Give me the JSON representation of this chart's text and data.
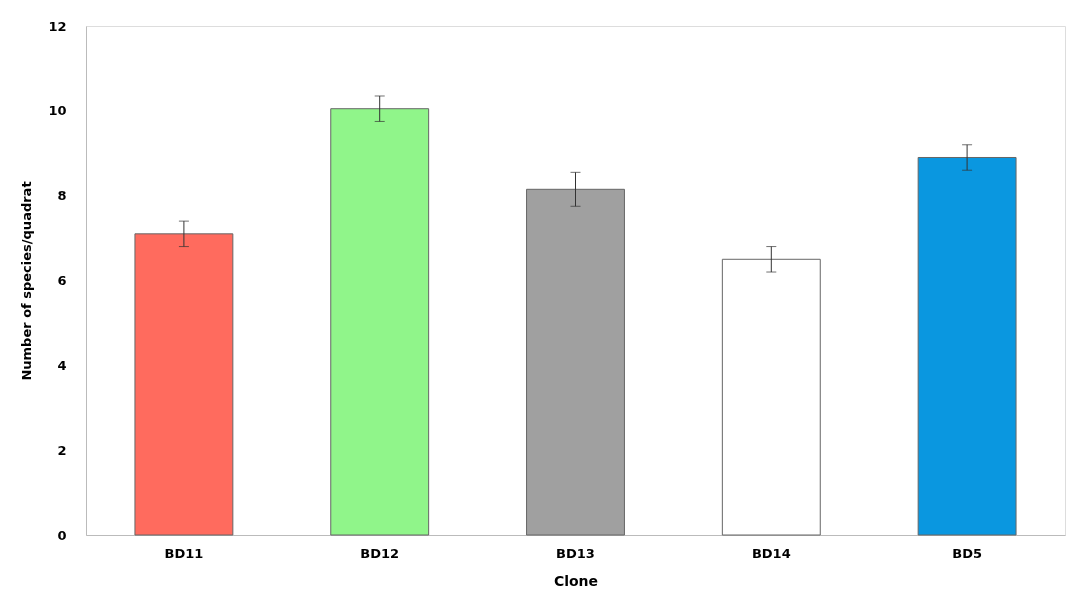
{
  "chart_data": {
    "type": "bar",
    "xlabel": "Clone",
    "ylabel": "Number of species/quadrat",
    "categories": [
      "BD11",
      "BD12",
      "BD13",
      "BD14",
      "BD5"
    ],
    "values": [
      7.1,
      10.05,
      8.15,
      6.5,
      8.9
    ],
    "errors": [
      0.3,
      0.3,
      0.4,
      0.3,
      0.3
    ],
    "colors": [
      "#ff6b5e",
      "#90f58a",
      "#a0a0a0",
      "#ffffff",
      "#0a97e0"
    ],
    "ylim": [
      0,
      12
    ],
    "yticks": [
      0,
      2,
      4,
      6,
      8,
      10,
      12
    ],
    "grid": false
  }
}
